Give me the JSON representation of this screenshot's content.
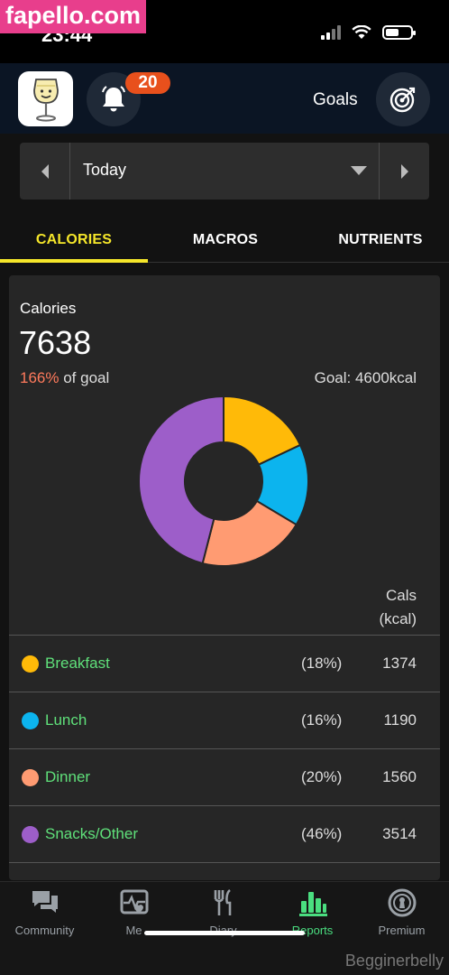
{
  "watermark_top": "fapello.com",
  "status_bar": {
    "time": "23:44"
  },
  "header": {
    "notification_count": "20",
    "goals_label": "Goals"
  },
  "date_nav": {
    "label": "Today"
  },
  "tabs": [
    {
      "label": "CALORIES",
      "active": true
    },
    {
      "label": "MACROS",
      "active": false
    },
    {
      "label": "NUTRIENTS",
      "active": false
    }
  ],
  "summary": {
    "title": "Calories",
    "total": "7638",
    "percent_of_goal": "166%",
    "of_goal_text": "of goal",
    "goal_text": "Goal: 4600kcal",
    "column_header_line1": "Cals",
    "column_header_line2": "(kcal)"
  },
  "chart_data": {
    "type": "pie",
    "categories": [
      "Breakfast",
      "Lunch",
      "Dinner",
      "Snacks/Other"
    ],
    "values": [
      1374,
      1190,
      1560,
      3514
    ],
    "colors": [
      "#ffba08",
      "#0cb4ee",
      "#ff9b72",
      "#9d5ec9"
    ]
  },
  "meals": [
    {
      "name": "Breakfast",
      "share": "(18%)",
      "cals": "1374",
      "color": "#ffba08"
    },
    {
      "name": "Lunch",
      "share": "(16%)",
      "cals": "1190",
      "color": "#0cb4ee"
    },
    {
      "name": "Dinner",
      "share": "(20%)",
      "cals": "1560",
      "color": "#ff9b72"
    },
    {
      "name": "Snacks/Other",
      "share": "(46%)",
      "cals": "3514",
      "color": "#9d5ec9"
    }
  ],
  "bottom_nav": [
    {
      "label": "Community",
      "icon": "community-icon",
      "active": false
    },
    {
      "label": "Me",
      "icon": "me-icon",
      "active": false
    },
    {
      "label": "Diary",
      "icon": "diary-icon",
      "active": false
    },
    {
      "label": "Reports",
      "icon": "reports-icon",
      "active": true
    },
    {
      "label": "Premium",
      "icon": "premium-icon",
      "active": false
    }
  ],
  "watermark_bottom": "Begginerbelly",
  "colors": {
    "accent_yellow": "#f5e62a",
    "active_green": "#4ade80",
    "over_goal_red": "#ff7a5c",
    "badge_orange": "#e8501c"
  }
}
